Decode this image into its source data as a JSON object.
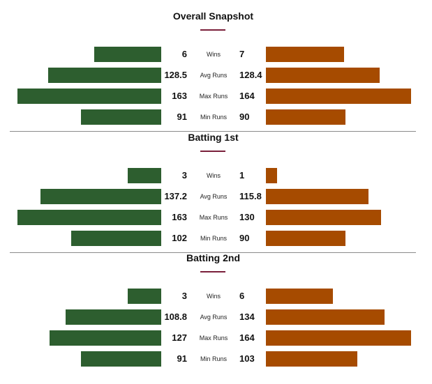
{
  "colors": {
    "left_team": "#2d5e2f",
    "right_team": "#a64b00",
    "accent": "#7a1f3a"
  },
  "chart_data": [
    {
      "type": "bar",
      "title": "Overall Snapshot",
      "categories": [
        "Wins",
        "Avg Runs",
        "Max Runs",
        "Min Runs"
      ],
      "series": [
        {
          "values": [
            6,
            128.5,
            163,
            91
          ],
          "labels": [
            "6",
            "128.5",
            "163",
            "91"
          ]
        },
        {
          "values": [
            7,
            128.4,
            164,
            90
          ],
          "labels": [
            "7",
            "128.4",
            "164",
            "90"
          ]
        }
      ]
    },
    {
      "type": "bar",
      "title": "Batting 1st",
      "categories": [
        "Wins",
        "Avg Runs",
        "Max Runs",
        "Min Runs"
      ],
      "series": [
        {
          "values": [
            3,
            137.2,
            163,
            102
          ],
          "labels": [
            "3",
            "137.2",
            "163",
            "102"
          ]
        },
        {
          "values": [
            1,
            115.8,
            130,
            90
          ],
          "labels": [
            "1",
            "115.8",
            "130",
            "90"
          ]
        }
      ]
    },
    {
      "type": "bar",
      "title": "Batting 2nd",
      "categories": [
        "Wins",
        "Avg Runs",
        "Max Runs",
        "Min Runs"
      ],
      "series": [
        {
          "values": [
            3,
            108.8,
            127,
            91
          ],
          "labels": [
            "3",
            "108.8",
            "127",
            "91"
          ]
        },
        {
          "values": [
            6,
            134,
            164,
            103
          ],
          "labels": [
            "6",
            "134",
            "164",
            "103"
          ]
        }
      ]
    }
  ]
}
